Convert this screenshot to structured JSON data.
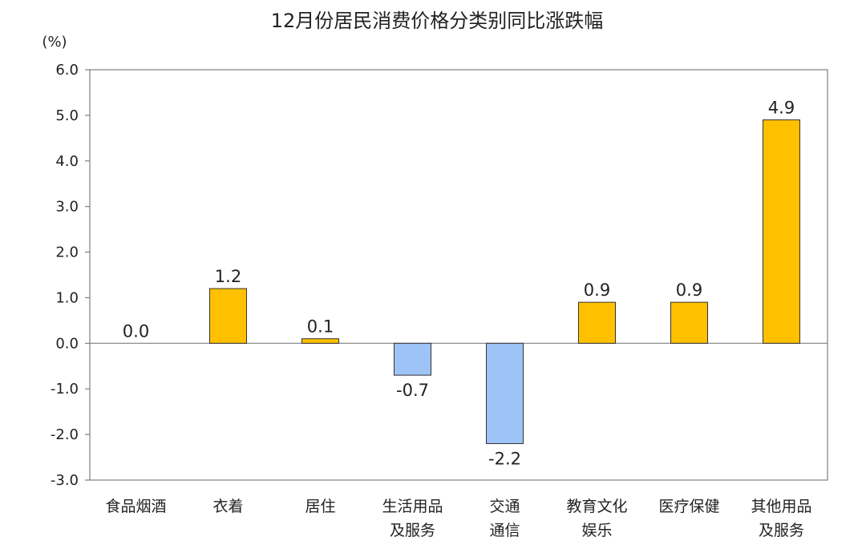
{
  "chart_data": {
    "type": "bar",
    "title": "12月份居民消费价格分类别同比涨跌幅",
    "ylabel": "(%)",
    "xlabel": "",
    "ylim": [
      -3.0,
      6.0
    ],
    "yticks": [
      "6.0",
      "5.0",
      "4.0",
      "3.0",
      "2.0",
      "1.0",
      "0.0",
      "-1.0",
      "-2.0",
      "-3.0"
    ],
    "ytick_values": [
      6,
      5,
      4,
      3,
      2,
      1,
      0,
      -1,
      -2,
      -3
    ],
    "categories": [
      [
        "食品烟酒"
      ],
      [
        "衣着"
      ],
      [
        "居住"
      ],
      [
        "生活用品",
        "及服务"
      ],
      [
        "交通",
        "通信"
      ],
      [
        "教育文化",
        "娱乐"
      ],
      [
        "医疗保健"
      ],
      [
        "其他用品",
        "及服务"
      ]
    ],
    "values": [
      0.0,
      1.2,
      0.1,
      -0.7,
      -2.2,
      0.9,
      0.9,
      4.9
    ],
    "data_labels": [
      "0.0",
      "1.2",
      "0.1",
      "-0.7",
      "-2.2",
      "0.9",
      "0.9",
      "4.9"
    ],
    "grid": false,
    "legend": "none",
    "colors": {
      "positive": "#FFC000",
      "negative": "#9DC3F7"
    }
  }
}
